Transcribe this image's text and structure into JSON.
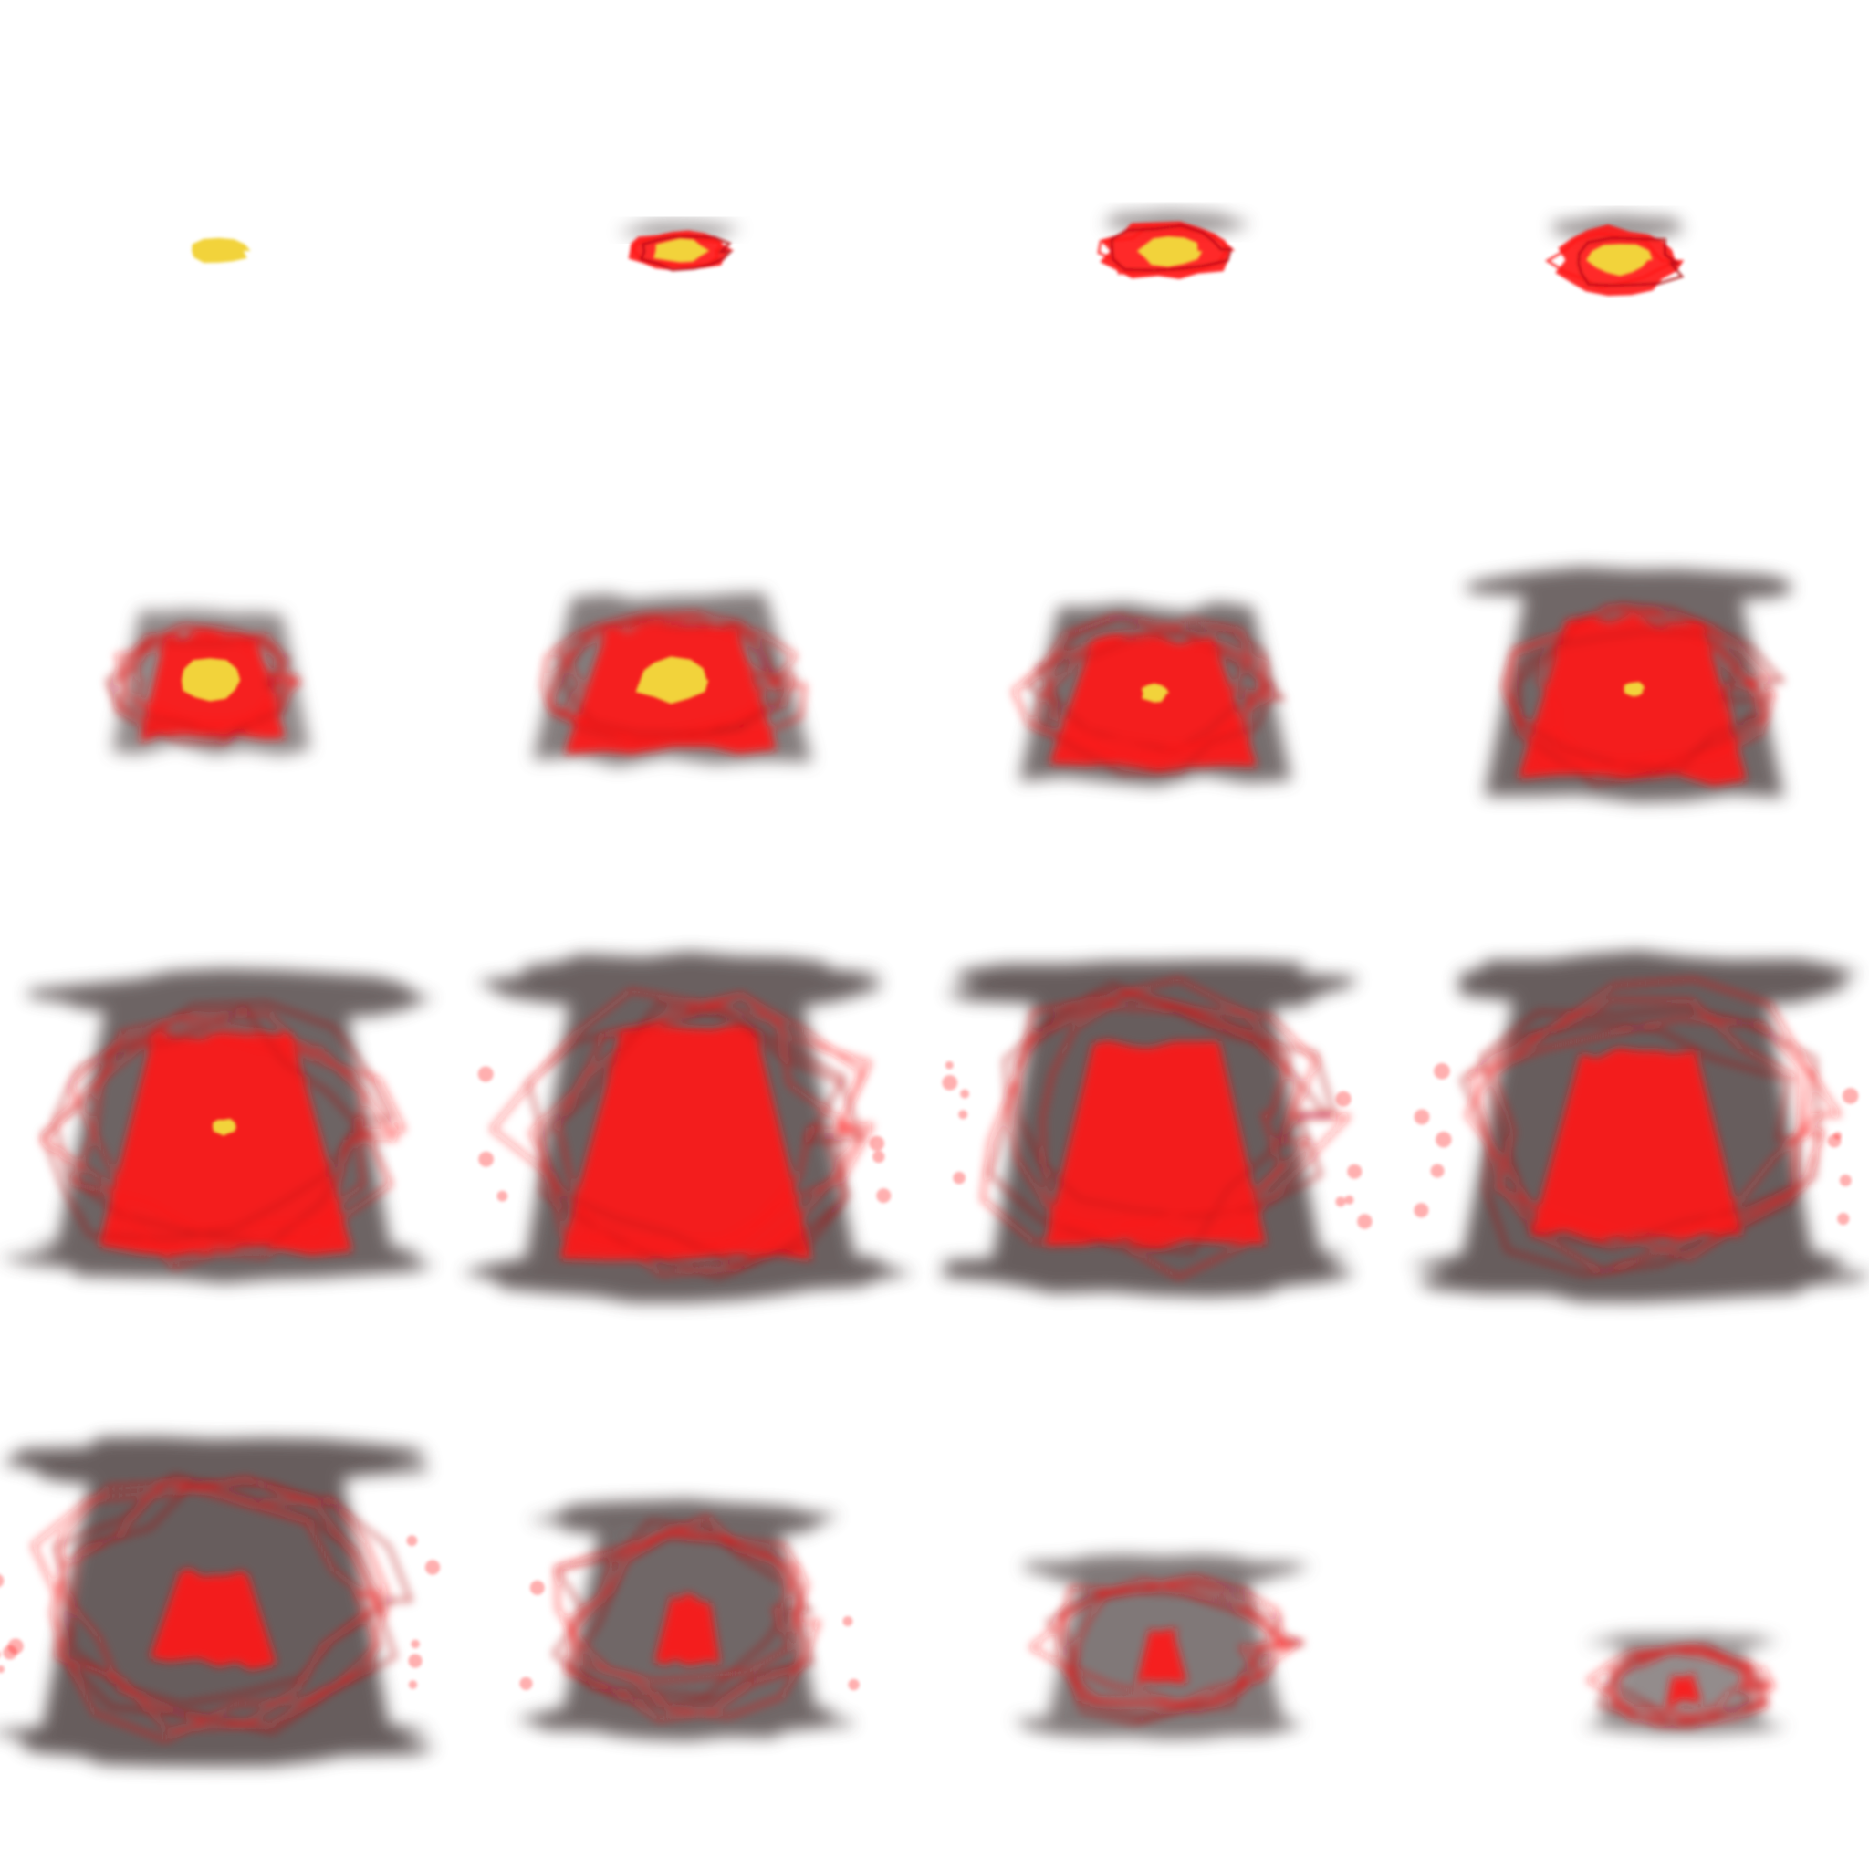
{
  "palette": {
    "background": "#ffffff",
    "smoke": "#5f5555",
    "smoke_light": "#8a7f7f",
    "fire": "#ff1a1a",
    "fire_dark": "#b40f14",
    "core": "#f2d33a"
  },
  "frames": [
    {
      "smoke": 0.0,
      "fire": 0.0,
      "core": 1.0,
      "embers": 0
    },
    {
      "smoke": 0.1,
      "fire": 0.3,
      "core": 0.8,
      "embers": 0
    },
    {
      "smoke": 0.15,
      "fire": 0.4,
      "core": 0.7,
      "embers": 0
    },
    {
      "smoke": 0.2,
      "fire": 0.45,
      "core": 0.75,
      "embers": 0
    },
    {
      "smoke": 0.35,
      "fire": 0.7,
      "core": 0.5,
      "embers": 0
    },
    {
      "smoke": 0.55,
      "fire": 0.7,
      "core": 0.45,
      "embers": 0
    },
    {
      "smoke": 0.75,
      "fire": 0.8,
      "core": 0.1,
      "embers": 0
    },
    {
      "smoke": 0.85,
      "fire": 0.9,
      "core": 0.05,
      "embers": 0
    },
    {
      "smoke": 0.9,
      "fire": 1.0,
      "core": 0.05,
      "embers": 0
    },
    {
      "smoke": 0.95,
      "fire": 0.95,
      "core": 0.0,
      "embers": 6
    },
    {
      "smoke": 1.0,
      "fire": 0.85,
      "core": 0.0,
      "embers": 10
    },
    {
      "smoke": 1.0,
      "fire": 0.75,
      "core": 0.0,
      "embers": 10
    },
    {
      "smoke": 1.0,
      "fire": 0.4,
      "core": 0.0,
      "embers": 10
    },
    {
      "smoke": 0.85,
      "fire": 0.2,
      "core": 0.0,
      "embers": 4
    },
    {
      "smoke": 0.6,
      "fire": 0.12,
      "core": 0.0,
      "embers": 0
    },
    {
      "smoke": 0.3,
      "fire": 0.08,
      "core": 0.0,
      "embers": 0
    }
  ]
}
